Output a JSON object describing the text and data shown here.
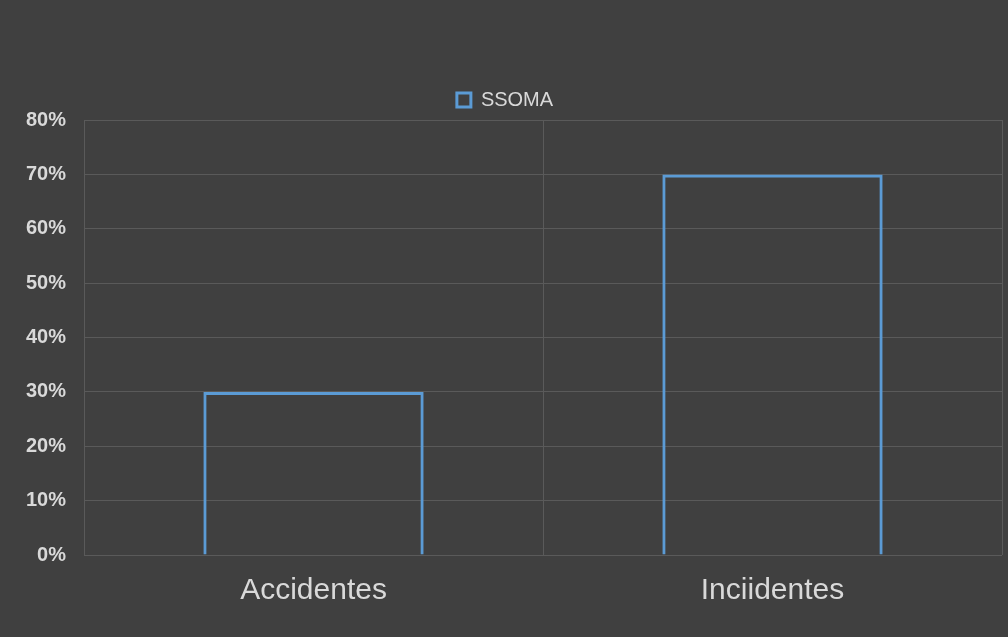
{
  "chart_data": {
    "type": "bar",
    "categories": [
      "Accidentes",
      "Inciidentes"
    ],
    "series": [
      {
        "name": "SSOMA",
        "color": "#5b9bd5",
        "values": [
          30,
          70
        ]
      }
    ],
    "ylim": [
      0,
      80
    ],
    "yticks": [
      {
        "value": 0,
        "label": "0%"
      },
      {
        "value": 10,
        "label": "10%"
      },
      {
        "value": 20,
        "label": "20%"
      },
      {
        "value": 30,
        "label": "30%"
      },
      {
        "value": 40,
        "label": "40%"
      },
      {
        "value": 50,
        "label": "50%"
      },
      {
        "value": 60,
        "label": "60%"
      },
      {
        "value": 70,
        "label": "70%"
      },
      {
        "value": 80,
        "label": "80%"
      }
    ],
    "grid": true,
    "legend": "top"
  }
}
